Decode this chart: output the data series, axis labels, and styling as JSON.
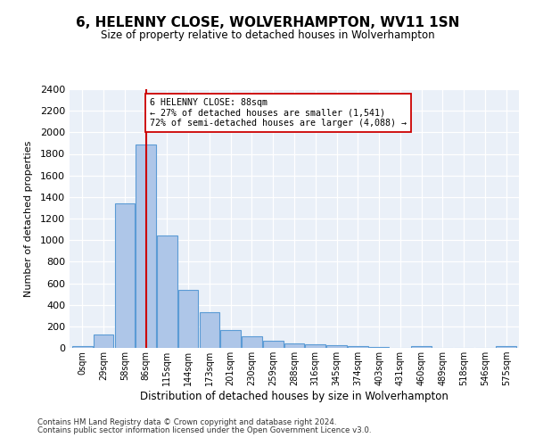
{
  "title": "6, HELENNY CLOSE, WOLVERHAMPTON, WV11 1SN",
  "subtitle": "Size of property relative to detached houses in Wolverhampton",
  "xlabel": "Distribution of detached houses by size in Wolverhampton",
  "ylabel": "Number of detached properties",
  "categories": [
    "0sqm",
    "29sqm",
    "58sqm",
    "86sqm",
    "115sqm",
    "144sqm",
    "173sqm",
    "201sqm",
    "230sqm",
    "259sqm",
    "288sqm",
    "316sqm",
    "345sqm",
    "374sqm",
    "403sqm",
    "431sqm",
    "460sqm",
    "489sqm",
    "518sqm",
    "546sqm",
    "575sqm"
  ],
  "values": [
    20,
    125,
    1340,
    1890,
    1045,
    540,
    335,
    165,
    110,
    65,
    40,
    30,
    25,
    20,
    10,
    0,
    20,
    0,
    0,
    0,
    20
  ],
  "bar_color": "#aec6e8",
  "bar_edge_color": "#5b9bd5",
  "vline_x": 3,
  "vline_color": "#cc0000",
  "annotation_line1": "6 HELENNY CLOSE: 88sqm",
  "annotation_line2": "← 27% of detached houses are smaller (1,541)",
  "annotation_line3": "72% of semi-detached houses are larger (4,088) →",
  "annotation_box_color": "#ffffff",
  "annotation_box_edge": "#cc0000",
  "ylim": [
    0,
    2400
  ],
  "yticks": [
    0,
    200,
    400,
    600,
    800,
    1000,
    1200,
    1400,
    1600,
    1800,
    2000,
    2200,
    2400
  ],
  "bg_color": "#eaf0f8",
  "footer1": "Contains HM Land Registry data © Crown copyright and database right 2024.",
  "footer2": "Contains public sector information licensed under the Open Government Licence v3.0."
}
